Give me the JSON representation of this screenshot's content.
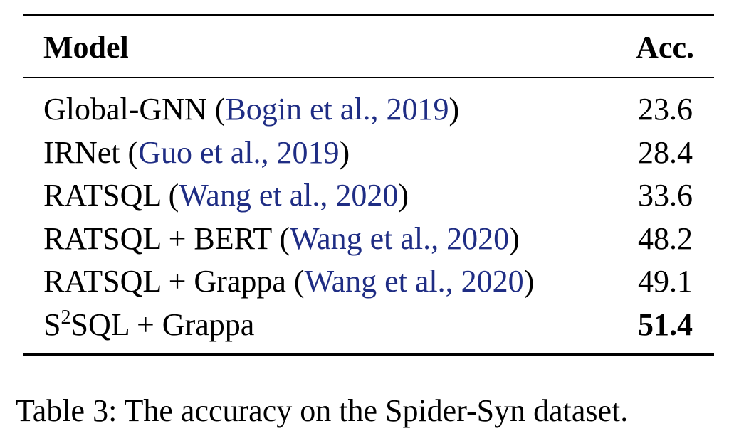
{
  "table": {
    "header": {
      "model": "Model",
      "acc": "Acc."
    },
    "rows": [
      {
        "name": "Global-GNN",
        "cite": "Bogin et al., 2019",
        "acc": "23.6"
      },
      {
        "name": "IRNet",
        "cite": "Guo et al., 2019",
        "acc": "28.4"
      },
      {
        "name": "RATSQL",
        "cite": "Wang et al., 2020",
        "acc": "33.6"
      },
      {
        "name": "RATSQL + BERT",
        "cite": "Wang et al., 2020",
        "acc": "48.2"
      },
      {
        "name": "RATSQL + Grappa",
        "cite": "Wang et al., 2020",
        "acc": "49.1"
      }
    ],
    "last_row": {
      "name_base": "S",
      "name_sup": "2",
      "name_rest": "SQL + Grappa",
      "acc": "51.4"
    }
  },
  "caption": "Table 3: The accuracy on the Spider-Syn dataset.",
  "colors": {
    "citation": "#1f2d84",
    "text": "#000000"
  }
}
